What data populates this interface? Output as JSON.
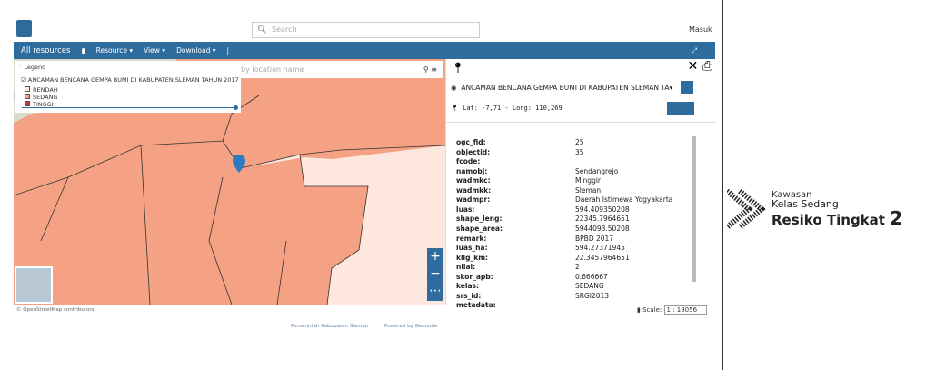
{
  "header": {
    "search_placeholder": "Search",
    "login": "Masuk"
  },
  "nav": {
    "items": [
      "All resources",
      "Resource ▾",
      "View ▾",
      "Download ▾"
    ]
  },
  "legend": {
    "title": "Legend",
    "layer": "ANCAMAN BENCANA GEMPA BUMI DI KABUPATEN SLEMAN TAHUN 2017",
    "classes": [
      "RENDAH",
      "SEDANG",
      "TINGGI"
    ]
  },
  "map": {
    "search_placeholder": "by location name",
    "attribution": "© OpenStreetMap contributors."
  },
  "identify": {
    "layer_title": "ANCAMAN BENCANA GEMPA BUMI DI KABUPATEN SLEMAN TA",
    "coordinates": "Lat: -7,71 - Long: 110,269",
    "rows": [
      {
        "key": "ogc_fid:",
        "value": "25"
      },
      {
        "key": "objectid:",
        "value": "35"
      },
      {
        "key": "fcode:"
      },
      {
        "key": "namobj:",
        "value": "Sendangrejo"
      },
      {
        "key": "wadmkc:",
        "value": "Minggir"
      },
      {
        "key": "wadmkk:",
        "value": "Sleman"
      },
      {
        "key": "wadmpr:",
        "value": "Daerah Istimewa Yogyakarta"
      },
      {
        "key": "luas:",
        "value": "594.409350208"
      },
      {
        "key": "shape_leng:",
        "value": "22345.7964651"
      },
      {
        "key": "shape_area:",
        "value": "5944093.50208"
      },
      {
        "key": "remark:",
        "value": "BPBD 2017"
      },
      {
        "key": "luas_ha:",
        "value": "594.27371945"
      },
      {
        "key": "kllg_km:",
        "value": "22.3457964651"
      },
      {
        "key": "nilai:",
        "value": "2"
      },
      {
        "key": "skor_apb:",
        "value": "0.666667"
      },
      {
        "key": "kelas:",
        "value": "SEDANG"
      },
      {
        "key": "srs_id:",
        "value": "SRGI2013"
      },
      {
        "key": "metadata:"
      }
    ]
  },
  "scale": {
    "label": "Scale:",
    "value": "1 : 18056"
  },
  "footer": {
    "links": [
      "Pemerintah Kabupaten Sleman",
      "Powered by Geonode"
    ]
  },
  "badge": {
    "line1": "Kawasan",
    "line2": "Kelas Sedang",
    "line3": "Resiko Tingkat",
    "number": "2"
  }
}
